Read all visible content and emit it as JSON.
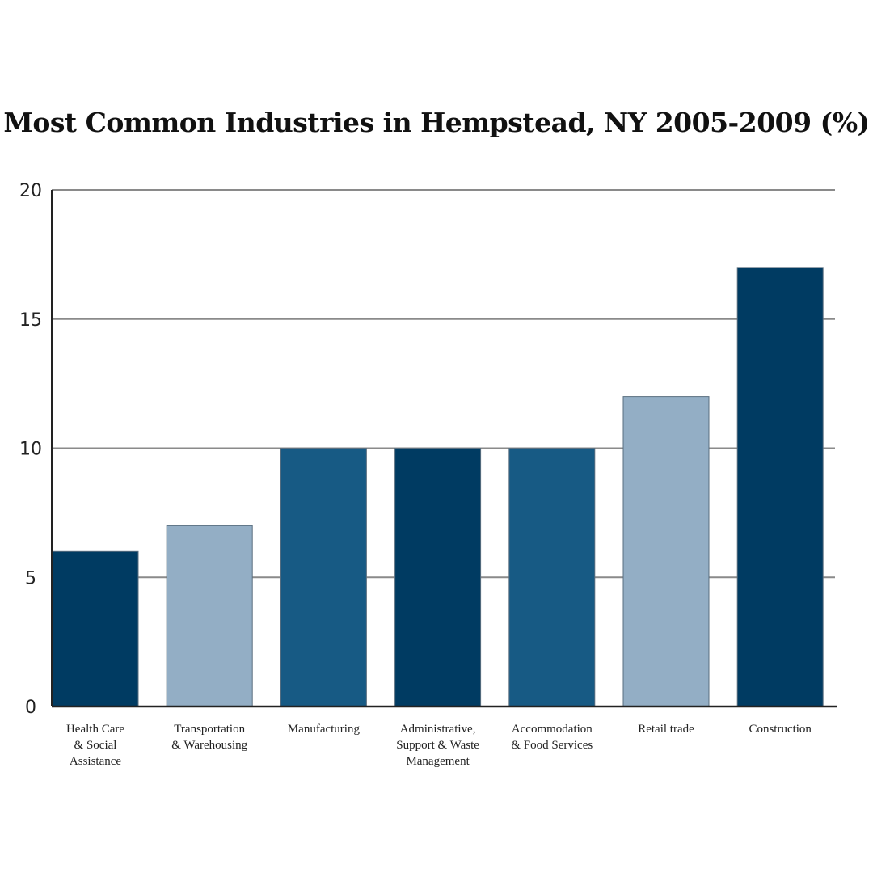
{
  "chart_data": {
    "type": "bar",
    "title": "Most Common Industries in Hempstead, NY 2005-2009 (%)",
    "xlabel": "",
    "ylabel": "",
    "ylim": [
      0,
      20
    ],
    "yticks": [
      0,
      5,
      10,
      15,
      20
    ],
    "grid": true,
    "categories": [
      [
        "Health Care",
        "& Social",
        "Assistance"
      ],
      [
        "Transportation",
        "& Warehousing"
      ],
      [
        "Manufacturing"
      ],
      [
        "Administrative,",
        "Support & Waste",
        "Management"
      ],
      [
        "Accommodation",
        "& Food Services"
      ],
      [
        "Retail trade"
      ],
      [
        "Construction"
      ]
    ],
    "values": [
      6,
      7,
      10,
      10,
      10,
      12,
      17
    ],
    "colors": [
      "#003b62",
      "#93aec5",
      "#175a84",
      "#003b62",
      "#175a84",
      "#93aec5",
      "#003b62"
    ]
  }
}
